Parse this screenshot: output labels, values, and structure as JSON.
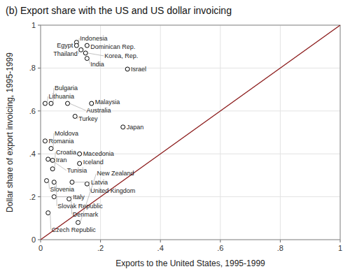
{
  "chart_data": {
    "type": "scatter",
    "title": "(b) Export share with the US and US dollar invoicing",
    "xlabel": "Exports to the United States, 1995-1999",
    "ylabel": "Dollar share of export invoicing, 1995-1999",
    "xlim": [
      0,
      1
    ],
    "ylim": [
      0,
      1
    ],
    "xticks": [
      0,
      {
        "value": 0.2,
        "label": ".2"
      },
      {
        "value": 0.4,
        "label": ".4"
      },
      {
        "value": 0.6,
        "label": ".6"
      },
      {
        "value": 0.8,
        "label": ".8"
      },
      1
    ],
    "yticks": [
      0,
      {
        "value": 0.2,
        "label": ".2"
      },
      {
        "value": 0.4,
        "label": ".4"
      },
      {
        "value": 0.6,
        "label": ".6"
      },
      {
        "value": 0.8,
        "label": ".8"
      },
      1
    ],
    "grid": true,
    "series": [
      {
        "type": "scatter",
        "marker": "circle-open",
        "color": "black",
        "x": [
          0.12,
          0.12,
          0.155,
          0.135,
          0.15,
          0.155,
          0.29,
          0.015,
          0.035,
          0.09,
          0.17,
          0.115,
          0.275,
          0.015,
          0.035,
          0.13,
          0.025,
          0.04,
          0.13,
          0.04,
          0.02,
          0.045,
          0.105,
          0.155,
          0.045,
          0.095,
          0.025,
          0.125
        ],
        "values": [
          0.92,
          0.905,
          0.905,
          0.885,
          0.87,
          0.845,
          0.795,
          0.635,
          0.635,
          0.635,
          0.635,
          0.575,
          0.525,
          0.46,
          0.425,
          0.4,
          0.375,
          0.37,
          0.355,
          0.33,
          0.275,
          0.268,
          0.268,
          0.26,
          0.2,
          0.19,
          0.125,
          0.08
        ],
        "labels": [
          "Indonesia",
          "Egypt",
          "Dominican Rep.",
          "Thailand",
          "Korea, Rep.",
          "India",
          "Israel",
          "Lithuania",
          "Bulgaria",
          "Australia",
          "Malaysia",
          "Turkey",
          "Japan",
          "Romania",
          "Moldova",
          "Macedonia",
          "Tunisia",
          "Iran",
          "Iceland",
          "Croatia",
          "Slovenia",
          "Slovak Republic",
          "Latvia",
          "United Kingdom",
          "Italy",
          "Denmark",
          "Czech Republic",
          "New Zealand"
        ]
      },
      {
        "type": "line",
        "color": "#8B1A1A",
        "x": [
          0,
          1
        ],
        "values": [
          0,
          1
        ]
      }
    ]
  }
}
